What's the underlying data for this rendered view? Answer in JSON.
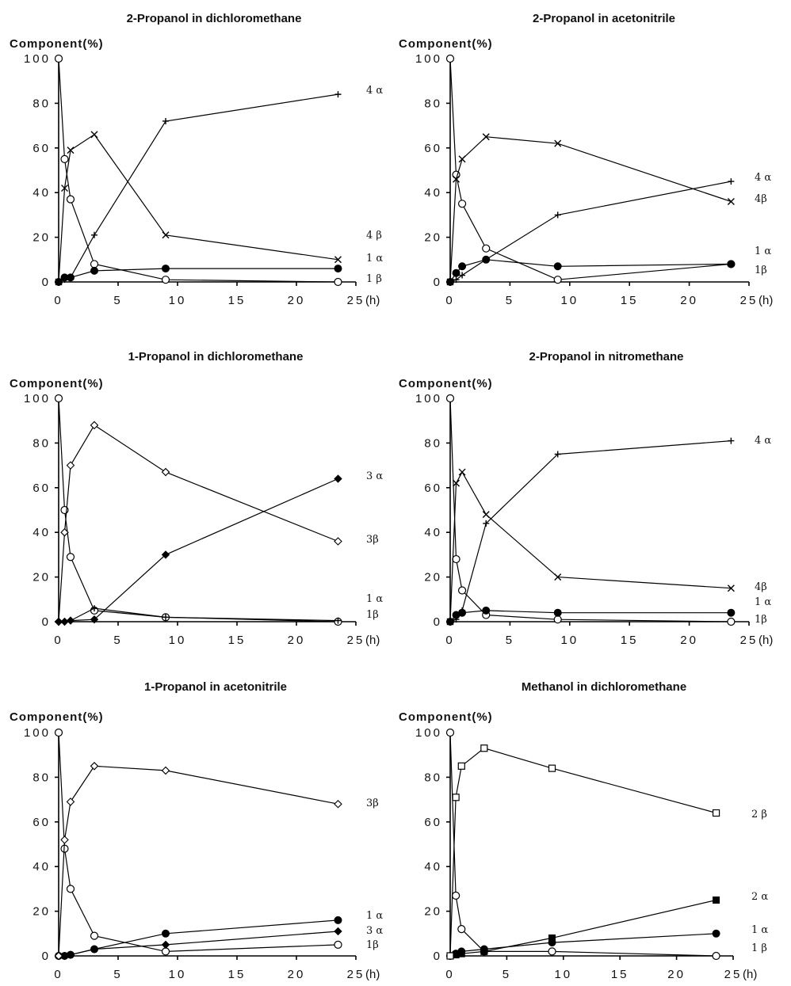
{
  "chart_data": [
    {
      "type": "line",
      "title": "2-Propanol   in   dichloromethane",
      "ylabel": "Component(%)",
      "x_unit": "(h)",
      "xlim": [
        0,
        25
      ],
      "ylim": [
        0,
        100
      ],
      "xticks": [
        0,
        5,
        10,
        15,
        20,
        25
      ],
      "yticks": [
        0,
        20,
        40,
        60,
        80,
        100
      ],
      "series": [
        {
          "name": "1 β",
          "marker": "open-circle",
          "x": [
            0,
            0.5,
            1,
            3,
            9,
            23.5
          ],
          "y": [
            100,
            55,
            37,
            8,
            1,
            0
          ]
        },
        {
          "name": "1 α",
          "marker": "filled-circle",
          "x": [
            0,
            0.5,
            1,
            3,
            9,
            23.5
          ],
          "y": [
            0,
            2,
            2,
            5,
            6,
            6
          ]
        },
        {
          "name": "4 β",
          "marker": "cross",
          "x": [
            0,
            0.5,
            1,
            3,
            9,
            23.5
          ],
          "y": [
            0,
            42,
            59,
            66,
            21,
            10
          ]
        },
        {
          "name": "4 α",
          "marker": "plus",
          "x": [
            0,
            0.5,
            1,
            3,
            9,
            23.5
          ],
          "y": [
            0,
            1,
            2,
            21,
            72,
            84
          ]
        }
      ]
    },
    {
      "type": "line",
      "title": "2-Propanol   in   acetonitrile",
      "ylabel": "Component(%)",
      "x_unit": "(h)",
      "xlim": [
        0,
        25
      ],
      "ylim": [
        0,
        100
      ],
      "xticks": [
        0,
        5,
        10,
        15,
        20,
        25
      ],
      "yticks": [
        0,
        20,
        40,
        60,
        80,
        100
      ],
      "series": [
        {
          "name": "1β",
          "marker": "open-circle",
          "x": [
            0,
            0.5,
            1,
            3,
            9,
            23.5
          ],
          "y": [
            100,
            48,
            35,
            15,
            1,
            8
          ]
        },
        {
          "name": "1 α",
          "marker": "filled-circle",
          "x": [
            0,
            0.5,
            1,
            3,
            9,
            23.5
          ],
          "y": [
            0,
            4,
            7,
            10,
            7,
            8
          ]
        },
        {
          "name": "4β",
          "marker": "cross",
          "x": [
            0,
            0.5,
            1,
            3,
            9,
            23.5
          ],
          "y": [
            0,
            46,
            55,
            65,
            62,
            36
          ]
        },
        {
          "name": "4 α",
          "marker": "plus",
          "x": [
            0,
            0.5,
            1,
            3,
            9,
            23.5
          ],
          "y": [
            0,
            1,
            3,
            10,
            30,
            45
          ]
        }
      ]
    },
    {
      "type": "line",
      "title": "1-Propanol   in   dichloromethane",
      "ylabel": "Component(%)",
      "x_unit": "(h)",
      "xlim": [
        0,
        25
      ],
      "ylim": [
        0,
        100
      ],
      "xticks": [
        0,
        5,
        10,
        15,
        20,
        25
      ],
      "yticks": [
        0,
        20,
        40,
        60,
        80,
        100
      ],
      "series": [
        {
          "name": "1β",
          "marker": "open-circle",
          "x": [
            0,
            0.5,
            1,
            3,
            9,
            23.5
          ],
          "y": [
            100,
            50,
            29,
            5,
            2,
            0
          ]
        },
        {
          "name": "1 α",
          "marker": "plus",
          "x": [
            0,
            0.5,
            1,
            3,
            9,
            23.5
          ],
          "y": [
            0,
            0,
            0.5,
            6,
            2,
            0.5
          ]
        },
        {
          "name": "3β",
          "marker": "open-diamond",
          "x": [
            0,
            0.5,
            1,
            3,
            9,
            23.5
          ],
          "y": [
            0,
            40,
            70,
            88,
            67,
            36
          ]
        },
        {
          "name": "3 α",
          "marker": "filled-diamond",
          "x": [
            0,
            0.5,
            1,
            3,
            9,
            23.5
          ],
          "y": [
            0,
            0,
            0.5,
            1,
            30,
            64
          ]
        }
      ]
    },
    {
      "type": "line",
      "title": "2-Propanol   in   nitromethane",
      "ylabel": "Component(%)",
      "x_unit": "(h)",
      "xlim": [
        0,
        25
      ],
      "ylim": [
        0,
        100
      ],
      "xticks": [
        0,
        5,
        10,
        15,
        20,
        25
      ],
      "yticks": [
        0,
        20,
        40,
        60,
        80,
        100
      ],
      "series": [
        {
          "name": "1β",
          "marker": "open-circle",
          "x": [
            0,
            0.5,
            1,
            3,
            9,
            23.5
          ],
          "y": [
            100,
            28,
            14,
            3,
            1,
            0
          ]
        },
        {
          "name": "1 α",
          "marker": "filled-circle",
          "x": [
            0,
            0.5,
            1,
            3,
            9,
            23.5
          ],
          "y": [
            0,
            3,
            4,
            5,
            4,
            4
          ]
        },
        {
          "name": "4β",
          "marker": "cross",
          "x": [
            0,
            0.5,
            1,
            3,
            9,
            23.5
          ],
          "y": [
            0,
            62,
            67,
            48,
            20,
            15
          ]
        },
        {
          "name": "4 α",
          "marker": "plus",
          "x": [
            0,
            0.5,
            1,
            3,
            9,
            23.5
          ],
          "y": [
            0,
            1,
            5,
            44,
            75,
            81
          ]
        }
      ]
    },
    {
      "type": "line",
      "title": "1-Propanol   in   acetonitrile",
      "ylabel": "Component(%)",
      "x_unit": "(h)",
      "xlim": [
        0,
        25
      ],
      "ylim": [
        0,
        100
      ],
      "xticks": [
        0,
        5,
        10,
        15,
        20,
        25
      ],
      "yticks": [
        0,
        20,
        40,
        60,
        80,
        100
      ],
      "series": [
        {
          "name": "1β",
          "marker": "open-circle",
          "x": [
            0,
            0.5,
            1,
            3,
            9,
            23.5
          ],
          "y": [
            100,
            48,
            30,
            9,
            2,
            5
          ]
        },
        {
          "name": "1 α",
          "marker": "filled-circle",
          "x": [
            0,
            0.5,
            1,
            3,
            9,
            23.5
          ],
          "y": [
            0,
            0,
            0.5,
            3,
            10,
            16
          ]
        },
        {
          "name": "3 α",
          "marker": "filled-diamond",
          "x": [
            0,
            0.5,
            1,
            3,
            9,
            23.5
          ],
          "y": [
            0,
            0,
            0.5,
            3,
            5,
            11
          ]
        },
        {
          "name": "3β",
          "marker": "open-diamond",
          "x": [
            0,
            0.5,
            1,
            3,
            9,
            23.5
          ],
          "y": [
            0,
            52,
            69,
            85,
            83,
            68
          ]
        }
      ]
    },
    {
      "type": "line",
      "title": "Methanol   in   dichloromethane",
      "ylabel": "Component(%)",
      "x_unit": "(h)",
      "xlim": [
        0,
        25
      ],
      "ylim": [
        0,
        100
      ],
      "xticks": [
        0,
        5,
        10,
        15,
        20,
        25
      ],
      "yticks": [
        0,
        20,
        40,
        60,
        80,
        100
      ],
      "series": [
        {
          "name": "1 β",
          "marker": "open-circle",
          "x": [
            0,
            0.5,
            1,
            3,
            9,
            23.5
          ],
          "y": [
            100,
            27,
            12,
            2,
            2,
            0
          ]
        },
        {
          "name": "1 α",
          "marker": "filled-circle",
          "x": [
            0,
            0.5,
            1,
            3,
            9,
            23.5
          ],
          "y": [
            0,
            1,
            2,
            3,
            6,
            10
          ]
        },
        {
          "name": "2 α",
          "marker": "filled-square",
          "x": [
            0,
            0.5,
            1,
            3,
            9,
            23.5
          ],
          "y": [
            0,
            0.5,
            1,
            2,
            8,
            25
          ]
        },
        {
          "name": "2 β",
          "marker": "open-square",
          "x": [
            0,
            0.5,
            1,
            3,
            9,
            23.5
          ],
          "y": [
            0,
            71,
            85,
            93,
            84,
            64
          ]
        }
      ]
    }
  ]
}
